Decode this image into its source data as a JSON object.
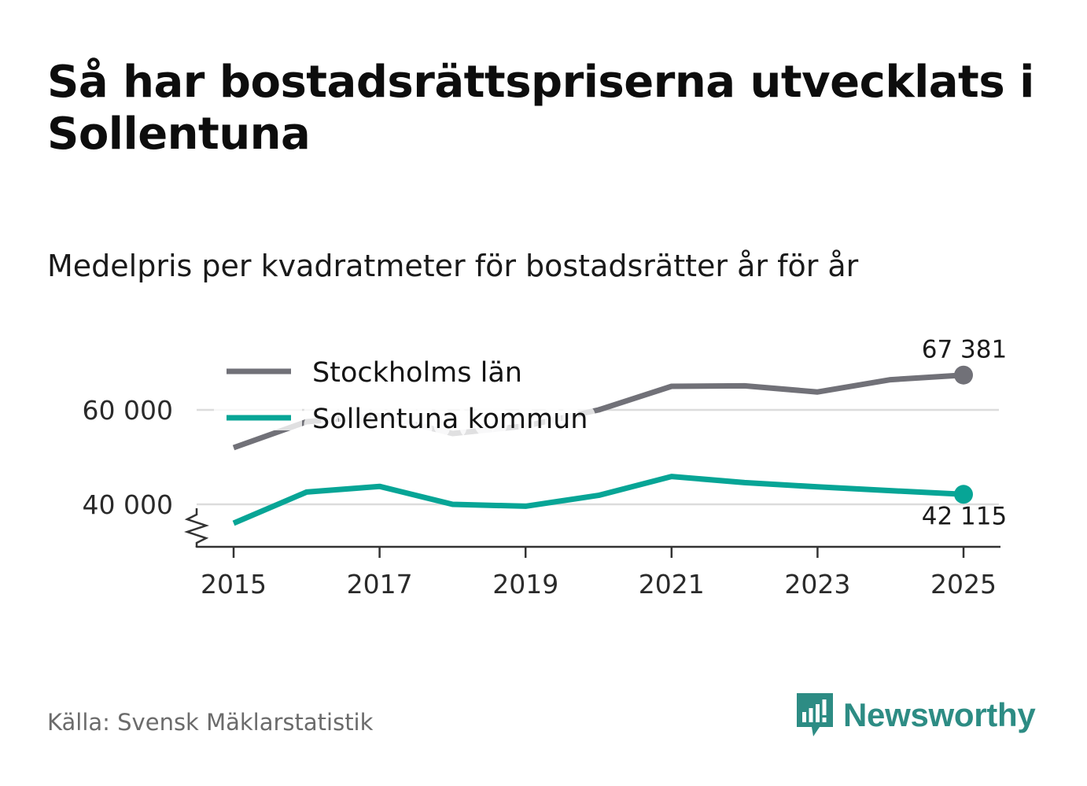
{
  "header": {
    "title": "Så har bostadsrättspriserna utvecklats i Sollentuna",
    "subtitle": "Medelpris per kvadratmeter för bostadsrätter år för år"
  },
  "chart_data": {
    "type": "line",
    "title": "Så har bostadsrättspriserna utvecklats i Sollentuna",
    "subtitle": "Medelpris per kvadratmeter för bostadsrätter år för år",
    "xlabel": "",
    "ylabel": "",
    "x": [
      2015,
      2016,
      2017,
      2018,
      2019,
      2020,
      2021,
      2022,
      2023,
      2024,
      2025
    ],
    "x_ticks": [
      2015,
      2017,
      2019,
      2021,
      2023,
      2025
    ],
    "x_tick_labels": [
      "2015",
      "2017",
      "2019",
      "2021",
      "2023",
      "2025"
    ],
    "y_ticks": [
      40000,
      60000
    ],
    "y_tick_labels": [
      "40 000",
      "60 000"
    ],
    "ylim": [
      31000,
      74000
    ],
    "axis_break": true,
    "grid": true,
    "legend_position": "top-left",
    "series": [
      {
        "name": "Stockholms län",
        "color": "#717178",
        "values": [
          52000,
          57500,
          58800,
          55000,
          56600,
          60000,
          65000,
          65100,
          63800,
          66400,
          67381
        ],
        "end_label": "67 381"
      },
      {
        "name": "Sollentuna kommun",
        "color": "#07a596",
        "values": [
          36000,
          42600,
          43800,
          40000,
          39600,
          41900,
          45900,
          44600,
          43700,
          42900,
          42115
        ],
        "end_label": "42 115"
      }
    ]
  },
  "footer": {
    "source": "Källa: Svensk Mäklarstatistik",
    "brand": "Newsworthy",
    "brand_color": "#2d8c84"
  }
}
